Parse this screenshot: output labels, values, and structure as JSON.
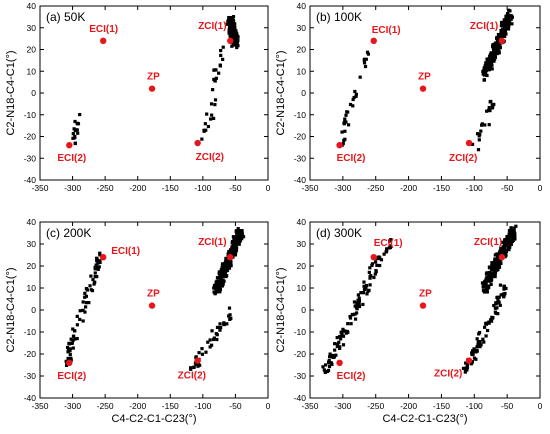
{
  "chart_data": [
    {
      "type": "scatter",
      "title": "(a) 50K",
      "xlabel": "",
      "ylabel": "C2-N18-C4-C1(°)",
      "xlim": [
        -350,
        0
      ],
      "ylim": [
        -40,
        40
      ],
      "xticks": [
        -350,
        -300,
        -250,
        -200,
        -150,
        -100,
        -50,
        0
      ],
      "yticks": [
        -40,
        -30,
        -20,
        -10,
        0,
        10,
        20,
        30,
        40
      ],
      "marker_color": "#000000",
      "ref_color": "#e8161b",
      "series": [
        {
          "clusters": [
            {
              "x": [
                -50,
                -58
              ],
              "y": [
                23,
                33
              ],
              "n": 190,
              "seed": 11
            },
            {
              "x": [
                -84,
                -66
              ],
              "y": [
                4,
                20
              ],
              "n": 14,
              "seed": 12
            },
            {
              "x": [
                -100,
                -80
              ],
              "y": [
                -24,
                0
              ],
              "n": 14,
              "seed": 13
            },
            {
              "x": [
                -300,
                -288
              ],
              "y": [
                -24,
                -8
              ],
              "n": 16,
              "seed": 14
            }
          ]
        }
      ],
      "reference_points": [
        {
          "label": "ECI(1)",
          "x": -253,
          "y": 24
        },
        {
          "label": "ZCI(1)",
          "x": -58,
          "y": 24
        },
        {
          "label": "ZP",
          "x": -178,
          "y": 2
        },
        {
          "label": "ZCI(2)",
          "x": -108,
          "y": -23
        },
        {
          "label": "ECI(2)",
          "x": -305,
          "y": -24
        }
      ]
    },
    {
      "type": "scatter",
      "title": "(b) 100K",
      "xlabel": "",
      "ylabel": "C2-N18-C4-C1(°)",
      "xlim": [
        -350,
        0
      ],
      "ylim": [
        -40,
        40
      ],
      "xticks": [
        -350,
        -300,
        -250,
        -200,
        -150,
        -100,
        -50,
        0
      ],
      "yticks": [
        -40,
        -30,
        -20,
        -10,
        0,
        10,
        20,
        30,
        40
      ],
      "marker_color": "#000000",
      "ref_color": "#e8161b",
      "series": [
        {
          "clusters": [
            {
              "x": [
                -45,
                -85
              ],
              "y": [
                36,
                8
              ],
              "n": 240,
              "seed": 21
            },
            {
              "x": [
                -100,
                -70
              ],
              "y": [
                -26,
                -4
              ],
              "n": 22,
              "seed": 22
            },
            {
              "x": [
                -305,
                -260
              ],
              "y": [
                -24,
                18
              ],
              "n": 30,
              "seed": 23
            }
          ]
        }
      ],
      "reference_points": [
        {
          "label": "ECI(1)",
          "x": -253,
          "y": 24
        },
        {
          "label": "ZCI(1)",
          "x": -58,
          "y": 24
        },
        {
          "label": "ZP",
          "x": -178,
          "y": 2
        },
        {
          "label": "ZCI(2)",
          "x": -108,
          "y": -23
        },
        {
          "label": "ECI(2)",
          "x": -305,
          "y": -24
        }
      ]
    },
    {
      "type": "scatter",
      "title": "(c) 200K",
      "xlabel": "C4-C2-C1-C23(°)",
      "ylabel": "C2-N18-C4-C1(°)",
      "xlim": [
        -350,
        0
      ],
      "ylim": [
        -40,
        40
      ],
      "xticks": [
        -350,
        -300,
        -250,
        -200,
        -150,
        -100,
        -50,
        0
      ],
      "yticks": [
        -40,
        -30,
        -20,
        -10,
        0,
        10,
        20,
        30,
        40
      ],
      "marker_color": "#000000",
      "ref_color": "#e8161b",
      "series": [
        {
          "clusters": [
            {
              "x": [
                -42,
                -80
              ],
              "y": [
                36,
                8
              ],
              "n": 230,
              "seed": 31
            },
            {
              "x": [
                -120,
                -50
              ],
              "y": [
                -28,
                2
              ],
              "n": 40,
              "seed": 32
            },
            {
              "x": [
                -310,
                -255
              ],
              "y": [
                -24,
                26
              ],
              "n": 70,
              "seed": 33
            }
          ]
        }
      ],
      "reference_points": [
        {
          "label": "ECI(1)",
          "x": -253,
          "y": 24
        },
        {
          "label": "ZCI(1)",
          "x": -58,
          "y": 24
        },
        {
          "label": "ZP",
          "x": -178,
          "y": 2
        },
        {
          "label": "ZCI(2)",
          "x": -108,
          "y": -23
        },
        {
          "label": "ECI(2)",
          "x": -305,
          "y": -24
        }
      ]
    },
    {
      "type": "scatter",
      "title": "(d) 300K",
      "xlabel": "C4-C2-C1-C23(°)",
      "ylabel": "C2-N18-C4-C1(°)",
      "xlim": [
        -350,
        0
      ],
      "ylim": [
        -40,
        40
      ],
      "xticks": [
        -350,
        -300,
        -250,
        -200,
        -150,
        -100,
        -50,
        0
      ],
      "yticks": [
        -40,
        -30,
        -20,
        -10,
        0,
        10,
        20,
        30,
        40
      ],
      "marker_color": "#000000",
      "ref_color": "#e8161b",
      "series": [
        {
          "clusters": [
            {
              "x": [
                -40,
                -85
              ],
              "y": [
                36,
                10
              ],
              "n": 220,
              "seed": 41
            },
            {
              "x": [
                -115,
                -55
              ],
              "y": [
                -30,
                10
              ],
              "n": 80,
              "seed": 42
            },
            {
              "x": [
                -330,
                -230
              ],
              "y": [
                -30,
                32
              ],
              "n": 110,
              "seed": 43
            }
          ]
        }
      ],
      "reference_points": [
        {
          "label": "ECI(1)",
          "x": -253,
          "y": 24
        },
        {
          "label": "ZCI(1)",
          "x": -58,
          "y": 24
        },
        {
          "label": "ZP",
          "x": -178,
          "y": 2
        },
        {
          "label": "ZCI(2)",
          "x": -108,
          "y": -23
        },
        {
          "label": "ECI(2)",
          "x": -305,
          "y": -24
        }
      ]
    }
  ]
}
